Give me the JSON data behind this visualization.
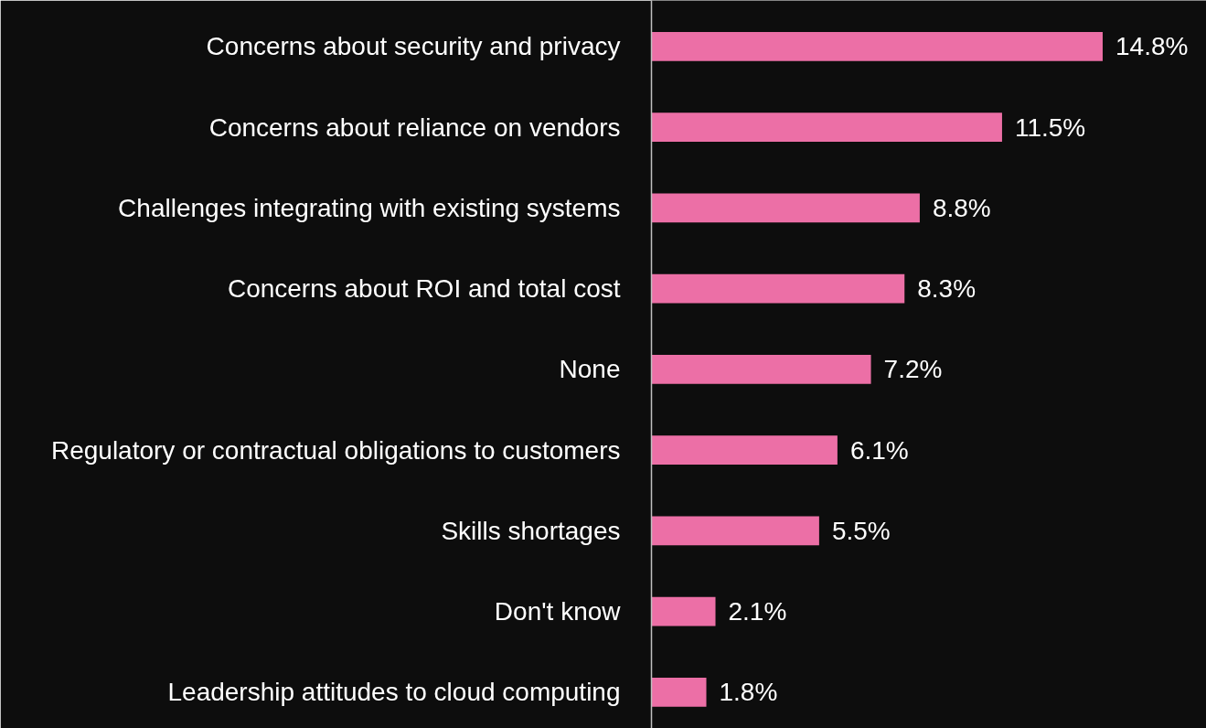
{
  "chart_data": {
    "type": "bar",
    "orientation": "horizontal",
    "categories": [
      "Concerns about security and privacy",
      "Concerns about reliance on vendors",
      "Challenges integrating with existing systems",
      "Concerns about ROI and total cost",
      "None",
      "Regulatory or contractual obligations to customers",
      "Skills shortages",
      "Don't know",
      "Leadership attitudes to cloud computing"
    ],
    "values": [
      14.8,
      11.5,
      8.8,
      8.3,
      7.2,
      6.1,
      5.5,
      2.1,
      1.8
    ],
    "value_labels": [
      "14.8%",
      "11.5%",
      "8.8%",
      "8.3%",
      "7.2%",
      "6.1%",
      "5.5%",
      "2.1%",
      "1.8%"
    ],
    "color": "#ec6fa6",
    "grid": false
  }
}
